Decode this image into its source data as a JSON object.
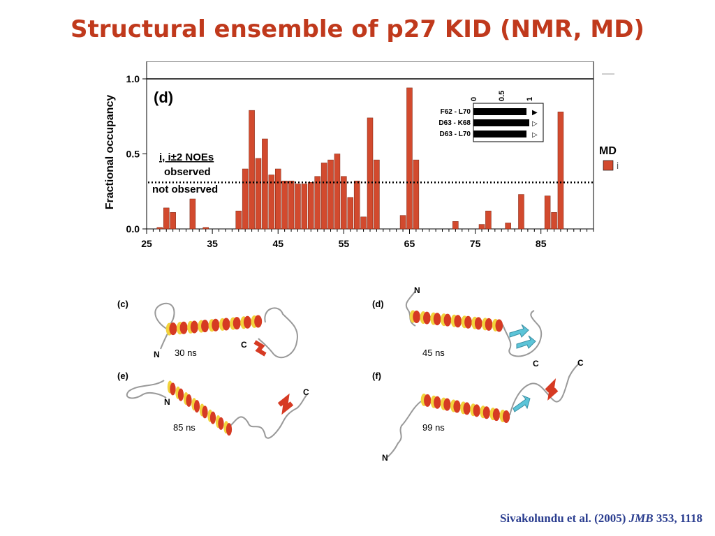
{
  "title": "Structural ensemble of p27 KID (NMR, MD)",
  "chart_data": {
    "type": "bar",
    "panel_label": "(d)",
    "ylabel": "Fractional occupancy",
    "xlabel": "",
    "xlim": [
      25,
      93
    ],
    "ylim": [
      0,
      1.0
    ],
    "yticks": [
      "0.0",
      "0.5",
      "1.0"
    ],
    "xticks": [
      "25",
      "35",
      "45",
      "55",
      "65",
      "75",
      "85"
    ],
    "threshold": 0.31,
    "annotation_title": "i, i±2 NOEs",
    "annotation_above": "observed",
    "annotation_below": "not observed",
    "legend_title": "MD",
    "legend_item": "i",
    "bar_color": "#d24a2e",
    "x": [
      27,
      28,
      29,
      32,
      34,
      39,
      40,
      41,
      42,
      43,
      44,
      45,
      46,
      47,
      48,
      49,
      50,
      51,
      52,
      53,
      54,
      55,
      56,
      57,
      58,
      59,
      60,
      64,
      65,
      66,
      72,
      76,
      77,
      80,
      82,
      86,
      87,
      88
    ],
    "values": [
      0.01,
      0.14,
      0.11,
      0.2,
      0.01,
      0.12,
      0.4,
      0.79,
      0.47,
      0.6,
      0.36,
      0.4,
      0.32,
      0.32,
      0.3,
      0.3,
      0.31,
      0.35,
      0.44,
      0.46,
      0.5,
      0.35,
      0.21,
      0.32,
      0.08,
      0.74,
      0.46,
      0.09,
      0.94,
      0.46,
      0.05,
      0.03,
      0.12,
      0.04,
      0.23,
      0.22,
      0.11,
      0.78
    ],
    "inset": {
      "tick_labels": [
        "0",
        "0.5",
        "1"
      ],
      "rows": [
        {
          "label": "F62 - L70",
          "value": 0.95,
          "marker": "▶"
        },
        {
          "label": "D63 - K68",
          "value": 1.0,
          "marker": "▷"
        },
        {
          "label": "D63 - L70",
          "value": 0.95,
          "marker": "▷"
        }
      ]
    }
  },
  "snapshots": [
    {
      "panel": "(c)",
      "time": "30 ns",
      "n": "N",
      "c": "C"
    },
    {
      "panel": "(d)",
      "time": "45 ns",
      "n": "N",
      "c": "C"
    },
    {
      "panel": "(e)",
      "time": "85 ns",
      "n": "N",
      "c": "C"
    },
    {
      "panel": "(f)",
      "time": "99 ns",
      "n": "N",
      "c": "C"
    }
  ],
  "citation": {
    "authors": "Sivakolundu et al. (2005)",
    "journal": "JMB",
    "ref": "353, 1118"
  }
}
